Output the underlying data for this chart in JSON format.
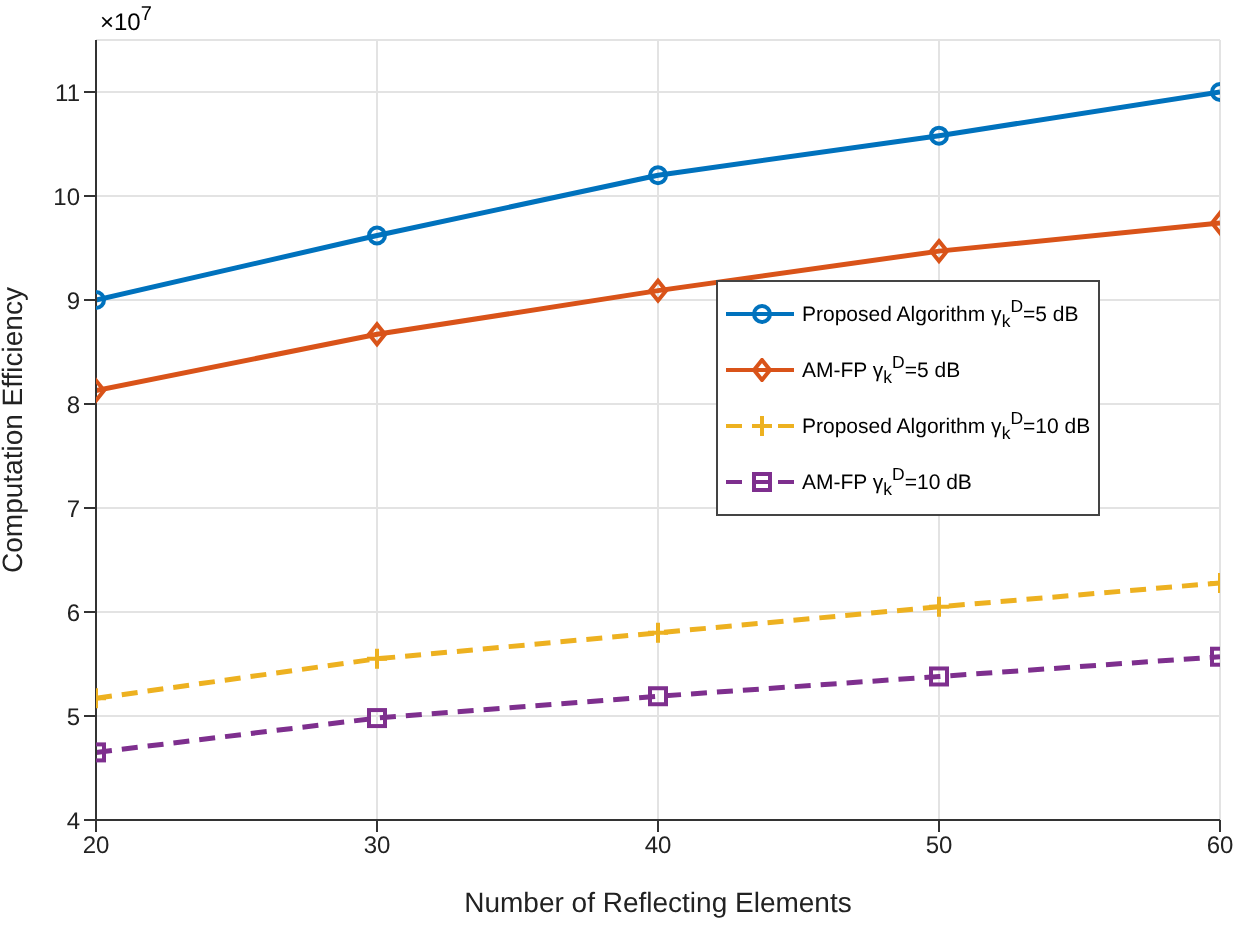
{
  "chart_data": {
    "type": "line",
    "xlabel": "Number of Reflecting Elements",
    "ylabel": "Computation Efficiency",
    "annotations": [
      "×10$^{7}$"
    ],
    "x": [
      20,
      30,
      40,
      50,
      60
    ],
    "series": [
      {
        "name": "Proposed Algorithm γ$_{k}$$^{D}$=5 dB",
        "color": "#0072bd",
        "values": [
          9.0,
          9.62,
          10.2,
          10.58,
          11.0
        ],
        "marker": "circle",
        "line_style": "solid"
      },
      {
        "name": "AM-FP γ$_{k}$$^{D}$=5 dB",
        "color": "#d95319",
        "values": [
          8.13,
          8.67,
          9.09,
          9.47,
          9.74
        ],
        "marker": "diamond",
        "line_style": "solid"
      },
      {
        "name": "Proposed Algorithm γ$_{k}$$^{D}$=10 dB",
        "color": "#edb120",
        "values": [
          5.17,
          5.55,
          5.8,
          6.05,
          6.28
        ],
        "marker": "cross",
        "line_style": "dashed"
      },
      {
        "name": "AM-FP γ$_{k}$$^{D}$=10 dB",
        "color": "#7e2f8e",
        "values": [
          4.65,
          4.98,
          5.19,
          5.38,
          5.57
        ],
        "marker": "square",
        "line_style": "dashed"
      }
    ],
    "xlim": [
      20,
      60
    ],
    "xticks": [
      20,
      30,
      40,
      50,
      60
    ],
    "ylim": [
      4,
      11.5
    ],
    "yticks": [
      4,
      5,
      6,
      7,
      8,
      9,
      10,
      11
    ],
    "grid": true,
    "legend": "right"
  }
}
